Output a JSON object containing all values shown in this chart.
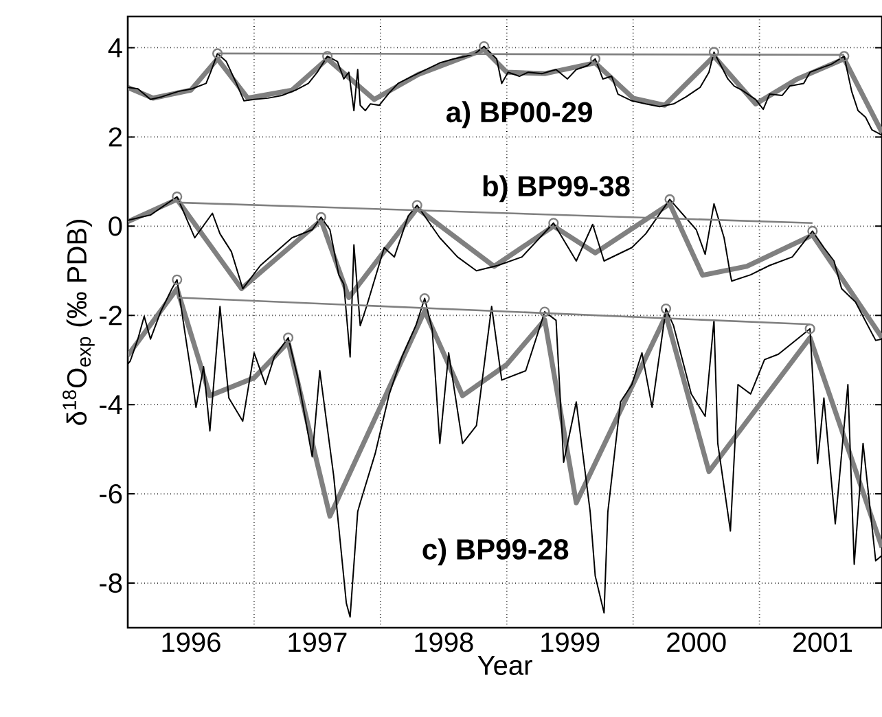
{
  "chart_data": {
    "type": "line",
    "xlabel": "Year",
    "ylabel": "δ$^{18}$O$_{exp}$ (‰ PDB)",
    "xlim": [
      1996.0,
      2001.97
    ],
    "ylim": [
      -9,
      4.7
    ],
    "xticks": [
      {
        "value": 1996.5,
        "label": "1996"
      },
      {
        "value": 1997,
        "label": null
      },
      {
        "value": 1997.5,
        "label": "1997"
      },
      {
        "value": 1998,
        "label": null
      },
      {
        "value": 1998.5,
        "label": "1998"
      },
      {
        "value": 1999,
        "label": null
      },
      {
        "value": 1999.5,
        "label": "1999"
      },
      {
        "value": 2000,
        "label": null
      },
      {
        "value": 2000.5,
        "label": "2000"
      },
      {
        "value": 2001,
        "label": null
      },
      {
        "value": 2001.5,
        "label": "2001"
      }
    ],
    "yticks": [
      -8,
      -6,
      -4,
      -2,
      0,
      2,
      4
    ],
    "grid": true,
    "series": [
      {
        "color": "#808080",
        "x": [
          1996.0,
          1996.2,
          1996.5,
          1996.71,
          1996.95,
          1997.3,
          1997.58,
          1997.95,
          1998.3,
          1998.82,
          1999.0,
          1999.3,
          1999.7,
          2000.0,
          2000.25,
          2000.64,
          2000.97,
          2001.3,
          2001.67,
          2001.97
        ],
        "values": [
          3.11,
          2.87,
          3.05,
          3.75,
          2.87,
          3.05,
          3.75,
          2.84,
          3.4,
          3.96,
          3.45,
          3.42,
          3.66,
          2.87,
          2.71,
          3.81,
          2.74,
          3.3,
          3.75,
          2.1
        ]
      },
      {
        "color": "#808080",
        "x": [
          1996.0,
          1996.39,
          1996.9,
          1997.53,
          1997.75,
          1998.29,
          1998.9,
          1999.37,
          1999.7,
          2000.29,
          2000.55,
          2000.9,
          2001.42,
          2001.97
        ],
        "values": [
          0.1,
          0.6,
          -1.4,
          0.13,
          -1.6,
          0.4,
          -0.9,
          0.0,
          -0.6,
          0.5,
          -1.1,
          -0.9,
          -0.2,
          -2.5
        ]
      },
      {
        "color": "#808080",
        "x": [
          1996.0,
          1996.39,
          1996.65,
          1997.0,
          1997.27,
          1997.6,
          1998.35,
          1998.65,
          1999.0,
          1999.3,
          1999.55,
          2000.26,
          2000.6,
          2001.4,
          2001.97
        ],
        "values": [
          -2.9,
          -1.4,
          -3.8,
          -3.4,
          -2.6,
          -6.5,
          -1.9,
          -3.8,
          -3.1,
          -2.1,
          -6.2,
          -2.0,
          -5.5,
          -2.5,
          -7.2
        ]
      },
      {
        "name": "a) BP00-29",
        "color": "#000000",
        "x": [
          1996.0,
          1996.08,
          1996.18,
          1996.27,
          1996.4,
          1996.51,
          1996.62,
          1996.66,
          1996.71,
          1996.78,
          1996.86,
          1996.92,
          1997.0,
          1997.11,
          1997.22,
          1997.33,
          1997.43,
          1997.5,
          1997.58,
          1997.66,
          1997.71,
          1997.75,
          1997.79,
          1997.82,
          1997.84,
          1997.88,
          1997.92,
          1997.99,
          1998.07,
          1998.14,
          1998.25,
          1998.36,
          1998.47,
          1998.58,
          1998.68,
          1998.75,
          1998.82,
          1998.92,
          1998.96,
          1999.01,
          1999.1,
          1999.17,
          1999.28,
          1999.39,
          1999.48,
          1999.55,
          1999.64,
          1999.7,
          1999.76,
          1999.83,
          1999.88,
          1999.99,
          2000.1,
          2000.21,
          2000.32,
          2000.42,
          2000.53,
          2000.6,
          2000.64,
          2000.75,
          2000.8,
          2000.86,
          2000.97,
          2001.03,
          2001.08,
          2001.18,
          2001.24,
          2001.35,
          2001.4,
          2001.51,
          2001.57,
          2001.67,
          2001.73,
          2001.78,
          2001.84,
          2001.89,
          2001.97
        ],
        "values": [
          3.11,
          3.08,
          2.84,
          2.9,
          3.02,
          3.08,
          3.2,
          3.48,
          3.87,
          3.69,
          3.2,
          2.81,
          2.84,
          2.87,
          2.93,
          3.05,
          3.2,
          3.45,
          3.81,
          3.69,
          3.3,
          3.45,
          2.59,
          3.51,
          2.71,
          2.59,
          2.74,
          2.71,
          2.99,
          3.2,
          3.36,
          3.51,
          3.66,
          3.75,
          3.81,
          3.87,
          4.03,
          3.75,
          3.2,
          3.45,
          3.36,
          3.45,
          3.42,
          3.51,
          3.3,
          3.51,
          3.6,
          3.75,
          3.3,
          3.36,
          2.96,
          2.81,
          2.74,
          2.68,
          2.74,
          2.9,
          3.11,
          3.45,
          3.9,
          3.3,
          3.14,
          3.05,
          2.84,
          2.62,
          2.96,
          2.93,
          3.14,
          3.2,
          3.45,
          3.57,
          3.63,
          3.81,
          3.02,
          2.59,
          2.44,
          2.16,
          2.04
        ]
      },
      {
        "name": "b) BP99-38",
        "color": "#000000",
        "x": [
          1996.0,
          1996.18,
          1996.39,
          1996.53,
          1996.67,
          1996.73,
          1996.82,
          1996.91,
          1997.05,
          1997.3,
          1997.46,
          1997.53,
          1997.6,
          1997.67,
          1997.71,
          1997.76,
          1997.79,
          1997.84,
          1997.89,
          1998.03,
          1998.11,
          1998.22,
          1998.29,
          1998.47,
          1998.61,
          1998.76,
          1998.93,
          1999.12,
          1999.37,
          1999.55,
          1999.68,
          1999.77,
          1999.99,
          2000.1,
          2000.29,
          2000.5,
          2000.57,
          2000.64,
          2000.72,
          2000.77,
          2000.78,
          2000.93,
          2001.08,
          2001.26,
          2001.42,
          2001.51,
          2001.59,
          2001.65,
          2001.76,
          2001.92,
          2001.97
        ],
        "values": [
          0.13,
          0.25,
          0.66,
          -0.26,
          0.29,
          -0.17,
          -0.57,
          -1.4,
          -0.88,
          -0.26,
          -0.08,
          0.2,
          -0.08,
          -1.09,
          -1.3,
          -2.93,
          -0.42,
          -2.23,
          -1.8,
          -0.48,
          -0.69,
          0.23,
          0.47,
          -0.26,
          -0.69,
          -1.0,
          -0.88,
          -0.69,
          0.07,
          -0.78,
          0.04,
          -0.78,
          -0.48,
          -0.17,
          0.6,
          -0.08,
          -0.63,
          0.5,
          -0.26,
          -1.09,
          -1.23,
          -1.09,
          -0.88,
          -0.69,
          -0.11,
          -0.48,
          -0.78,
          -1.4,
          -1.7,
          -2.56,
          -2.53
        ]
      },
      {
        "name": "c) BP99-28",
        "color": "#000000",
        "x": [
          1996.0,
          1996.02,
          1996.08,
          1996.13,
          1996.18,
          1996.26,
          1996.35,
          1996.39,
          1996.46,
          1996.51,
          1996.54,
          1996.6,
          1996.65,
          1996.73,
          1996.8,
          1996.91,
          1997.0,
          1997.09,
          1997.16,
          1997.27,
          1997.35,
          1997.46,
          1997.52,
          1997.63,
          1997.73,
          1997.76,
          1997.82,
          1997.84,
          1997.96,
          1998.07,
          1998.17,
          1998.28,
          1998.35,
          1998.41,
          1998.47,
          1998.54,
          1998.65,
          1998.76,
          1998.88,
          1998.96,
          1999.15,
          1999.3,
          1999.39,
          1999.45,
          1999.55,
          1999.66,
          1999.7,
          1999.77,
          1999.8,
          1999.9,
          1999.99,
          2000.07,
          2000.15,
          2000.26,
          2000.32,
          2000.46,
          2000.57,
          2000.64,
          2000.67,
          2000.77,
          2000.83,
          2000.93,
          2001.04,
          2001.15,
          2001.26,
          2001.4,
          2001.46,
          2001.51,
          2001.6,
          2001.7,
          2001.75,
          2001.82,
          2001.92,
          2001.97
        ],
        "values": [
          -3.09,
          -3.02,
          -2.53,
          -2.02,
          -2.53,
          -1.92,
          -1.4,
          -1.2,
          -2.53,
          -3.45,
          -4.06,
          -3.15,
          -4.59,
          -1.8,
          -3.85,
          -4.37,
          -2.84,
          -3.55,
          -2.93,
          -2.5,
          -3.45,
          -5.17,
          -3.24,
          -5.6,
          -8.45,
          -8.76,
          -6.4,
          -6.2,
          -5.08,
          -3.76,
          -2.93,
          -2.23,
          -1.62,
          -2.32,
          -4.87,
          -2.84,
          -4.87,
          -4.47,
          -1.8,
          -3.45,
          -3.24,
          -1.92,
          -2.11,
          -5.29,
          -3.94,
          -6.4,
          -7.84,
          -8.67,
          -6.4,
          -3.94,
          -3.55,
          -2.84,
          -4.06,
          -1.85,
          -2.23,
          -3.76,
          -4.26,
          -2.11,
          -4.87,
          -6.83,
          -3.55,
          -3.76,
          -2.99,
          -2.87,
          -2.62,
          -2.3,
          -5.32,
          -3.85,
          -6.67,
          -3.55,
          -7.58,
          -4.87,
          -7.5,
          -7.38
        ]
      },
      {
        "color": "#808080",
        "x": [
          1996.71,
          2001.67
        ],
        "values": [
          3.87,
          3.84
        ]
      },
      {
        "color": "#808080",
        "x": [
          1996.39,
          2001.42
        ],
        "values": [
          0.53,
          0.07
        ]
      },
      {
        "color": "#808080",
        "x": [
          1996.39,
          2001.4
        ],
        "values": [
          -1.6,
          -2.2
        ]
      },
      {
        "type": "scatter",
        "marker": "circle",
        "color": "#808080",
        "x": [
          1996.71,
          1997.58,
          1998.82,
          1999.7,
          2000.64,
          2001.67
        ],
        "values": [
          3.87,
          3.81,
          4.03,
          3.75,
          3.9,
          3.81
        ]
      },
      {
        "type": "scatter",
        "marker": "circle",
        "color": "#808080",
        "x": [
          1996.39,
          1997.53,
          1998.29,
          1999.37,
          2000.29,
          2001.42
        ],
        "values": [
          0.66,
          0.2,
          0.47,
          0.07,
          0.6,
          -0.11
        ]
      },
      {
        "type": "scatter",
        "marker": "circle",
        "color": "#808080",
        "x": [
          1996.39,
          1997.27,
          1998.35,
          1999.3,
          2000.26,
          2001.4
        ],
        "values": [
          -1.2,
          -2.5,
          -1.62,
          -1.92,
          -1.85,
          -2.3
        ]
      }
    ]
  }
}
